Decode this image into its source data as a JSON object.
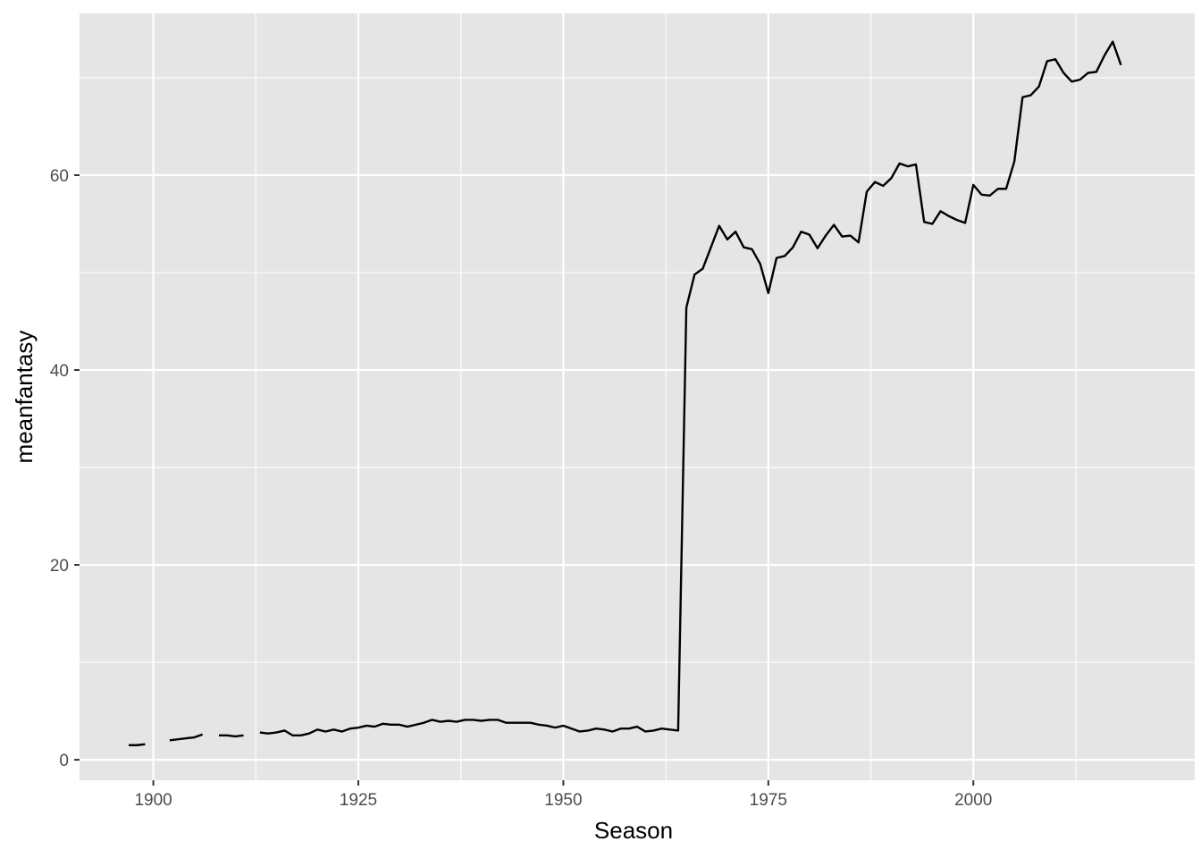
{
  "chart_data": {
    "type": "line",
    "title": "",
    "xlabel": "Season",
    "ylabel": "meanfantasy",
    "xlim": [
      1891,
      2027
    ],
    "ylim": [
      -2.1,
      76.6
    ],
    "x_ticks": [
      1900,
      1925,
      1950,
      1975,
      2000
    ],
    "y_ticks": [
      0,
      20,
      40,
      60
    ],
    "grid": true,
    "legend": "none",
    "colors": {
      "panel": "#e5e5e5",
      "grid": "#ffffff",
      "line": "#000000",
      "tick_text": "#4d4d4d"
    },
    "series": [
      {
        "points": [
          [
            1897,
            1.5
          ],
          [
            1898,
            1.5
          ],
          [
            1899,
            1.6
          ],
          [
            1900,
            null
          ],
          [
            1901,
            null
          ],
          [
            1902,
            2.0
          ],
          [
            1903,
            2.1
          ],
          [
            1904,
            2.2
          ],
          [
            1905,
            2.3
          ],
          [
            1906,
            2.6
          ],
          [
            1907,
            null
          ],
          [
            1908,
            2.5
          ],
          [
            1909,
            2.5
          ],
          [
            1910,
            2.4
          ],
          [
            1911,
            2.5
          ],
          [
            1912,
            null
          ],
          [
            1913,
            2.8
          ],
          [
            1914,
            2.7
          ],
          [
            1915,
            2.8
          ],
          [
            1916,
            3.0
          ],
          [
            1917,
            2.5
          ],
          [
            1918,
            2.5
          ],
          [
            1919,
            2.7
          ],
          [
            1920,
            3.1
          ],
          [
            1921,
            2.9
          ],
          [
            1922,
            3.1
          ],
          [
            1923,
            2.9
          ],
          [
            1924,
            3.2
          ],
          [
            1925,
            3.3
          ],
          [
            1926,
            3.5
          ],
          [
            1927,
            3.4
          ],
          [
            1928,
            3.7
          ],
          [
            1929,
            3.6
          ],
          [
            1930,
            3.6
          ],
          [
            1931,
            3.4
          ],
          [
            1932,
            3.6
          ],
          [
            1933,
            3.8
          ],
          [
            1934,
            4.1
          ],
          [
            1935,
            3.9
          ],
          [
            1936,
            4.0
          ],
          [
            1937,
            3.9
          ],
          [
            1938,
            4.1
          ],
          [
            1939,
            4.1
          ],
          [
            1940,
            4.0
          ],
          [
            1941,
            4.1
          ],
          [
            1942,
            4.1
          ],
          [
            1943,
            3.8
          ],
          [
            1944,
            3.8
          ],
          [
            1945,
            3.8
          ],
          [
            1946,
            3.8
          ],
          [
            1947,
            3.6
          ],
          [
            1948,
            3.5
          ],
          [
            1949,
            3.3
          ],
          [
            1950,
            3.5
          ],
          [
            1951,
            3.2
          ],
          [
            1952,
            2.9
          ],
          [
            1953,
            3.0
          ],
          [
            1954,
            3.2
          ],
          [
            1955,
            3.1
          ],
          [
            1956,
            2.9
          ],
          [
            1957,
            3.2
          ],
          [
            1958,
            3.2
          ],
          [
            1959,
            3.4
          ],
          [
            1960,
            2.9
          ],
          [
            1961,
            3.0
          ],
          [
            1962,
            3.2
          ],
          [
            1963,
            3.1
          ],
          [
            1964,
            3.0
          ],
          [
            1965,
            46.4
          ],
          [
            1966,
            49.8
          ],
          [
            1967,
            50.4
          ],
          [
            1968,
            52.6
          ],
          [
            1969,
            54.8
          ],
          [
            1970,
            53.4
          ],
          [
            1971,
            54.2
          ],
          [
            1972,
            52.6
          ],
          [
            1973,
            52.4
          ],
          [
            1974,
            50.9
          ],
          [
            1975,
            47.9
          ],
          [
            1976,
            51.5
          ],
          [
            1977,
            51.7
          ],
          [
            1978,
            52.6
          ],
          [
            1979,
            54.2
          ],
          [
            1980,
            53.9
          ],
          [
            1981,
            52.5
          ],
          [
            1982,
            53.8
          ],
          [
            1983,
            54.9
          ],
          [
            1984,
            53.7
          ],
          [
            1985,
            53.8
          ],
          [
            1986,
            53.1
          ],
          [
            1987,
            58.3
          ],
          [
            1988,
            59.3
          ],
          [
            1989,
            58.9
          ],
          [
            1990,
            59.7
          ],
          [
            1991,
            61.2
          ],
          [
            1992,
            60.9
          ],
          [
            1993,
            61.1
          ],
          [
            1994,
            55.2
          ],
          [
            1995,
            55.0
          ],
          [
            1996,
            56.3
          ],
          [
            1997,
            55.8
          ],
          [
            1998,
            55.4
          ],
          [
            1999,
            55.1
          ],
          [
            2000,
            59.0
          ],
          [
            2001,
            58.0
          ],
          [
            2002,
            57.9
          ],
          [
            2003,
            58.6
          ],
          [
            2004,
            58.6
          ],
          [
            2005,
            61.4
          ],
          [
            2006,
            68.0
          ],
          [
            2007,
            68.2
          ],
          [
            2008,
            69.1
          ],
          [
            2009,
            71.7
          ],
          [
            2010,
            71.9
          ],
          [
            2011,
            70.5
          ],
          [
            2012,
            69.6
          ],
          [
            2013,
            69.8
          ],
          [
            2014,
            70.5
          ],
          [
            2015,
            70.6
          ],
          [
            2016,
            72.3
          ],
          [
            2017,
            73.7
          ],
          [
            2018,
            71.3
          ]
        ]
      }
    ]
  }
}
